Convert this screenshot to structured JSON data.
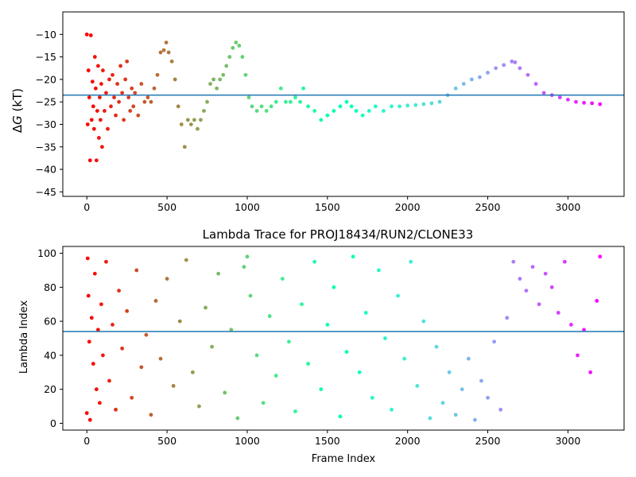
{
  "chart_data": [
    {
      "type": "scatter",
      "title": "",
      "xlabel": "",
      "ylabel_prefix": "Δ",
      "ylabel_italic": "G",
      "ylabel_suffix": " (kT)",
      "xlim": [
        -150,
        3350
      ],
      "ylim": [
        -46,
        -5
      ],
      "x_ticks": [
        0,
        500,
        1000,
        1500,
        2000,
        2500,
        3000
      ],
      "y_ticks": [
        -10,
        -15,
        -20,
        -25,
        -30,
        -35,
        -40,
        -45
      ],
      "hline": -23.5,
      "hline_color": "#1f77b4",
      "colormap": "rainbow",
      "grid": false,
      "description_of_series": "Free energy per frame, colored by frame index",
      "points": [
        {
          "x": 0,
          "y": -10
        },
        {
          "x": 5,
          "y": -30
        },
        {
          "x": 10,
          "y": -18
        },
        {
          "x": 15,
          "y": -24
        },
        {
          "x": 20,
          "y": -38
        },
        {
          "x": 25,
          "y": -10.2
        },
        {
          "x": 30,
          "y": -29
        },
        {
          "x": 35,
          "y": -20.5
        },
        {
          "x": 40,
          "y": -26
        },
        {
          "x": 45,
          "y": -31
        },
        {
          "x": 50,
          "y": -15
        },
        {
          "x": 55,
          "y": -22
        },
        {
          "x": 60,
          "y": -38
        },
        {
          "x": 65,
          "y": -27
        },
        {
          "x": 70,
          "y": -17
        },
        {
          "x": 75,
          "y": -33
        },
        {
          "x": 80,
          "y": -24
        },
        {
          "x": 85,
          "y": -29
        },
        {
          "x": 90,
          "y": -21
        },
        {
          "x": 95,
          "y": -35
        },
        {
          "x": 100,
          "y": -18
        },
        {
          "x": 110,
          "y": -27
        },
        {
          "x": 120,
          "y": -23
        },
        {
          "x": 130,
          "y": -31
        },
        {
          "x": 140,
          "y": -20
        },
        {
          "x": 150,
          "y": -26
        },
        {
          "x": 160,
          "y": -19
        },
        {
          "x": 170,
          "y": -24
        },
        {
          "x": 180,
          "y": -28
        },
        {
          "x": 190,
          "y": -21
        },
        {
          "x": 200,
          "y": -25
        },
        {
          "x": 210,
          "y": -17
        },
        {
          "x": 220,
          "y": -23
        },
        {
          "x": 230,
          "y": -29
        },
        {
          "x": 240,
          "y": -20
        },
        {
          "x": 250,
          "y": -16
        },
        {
          "x": 260,
          "y": -24
        },
        {
          "x": 270,
          "y": -27
        },
        {
          "x": 280,
          "y": -22
        },
        {
          "x": 290,
          "y": -26
        },
        {
          "x": 300,
          "y": -23
        },
        {
          "x": 320,
          "y": -28
        },
        {
          "x": 340,
          "y": -21
        },
        {
          "x": 360,
          "y": -25
        },
        {
          "x": 380,
          "y": -24
        },
        {
          "x": 400,
          "y": -25
        },
        {
          "x": 420,
          "y": -22
        },
        {
          "x": 440,
          "y": -19
        },
        {
          "x": 460,
          "y": -14
        },
        {
          "x": 480,
          "y": -13.5
        },
        {
          "x": 495,
          "y": -11.8
        },
        {
          "x": 510,
          "y": -14
        },
        {
          "x": 530,
          "y": -16
        },
        {
          "x": 550,
          "y": -20
        },
        {
          "x": 570,
          "y": -26
        },
        {
          "x": 590,
          "y": -30
        },
        {
          "x": 610,
          "y": -35
        },
        {
          "x": 630,
          "y": -29
        },
        {
          "x": 650,
          "y": -30
        },
        {
          "x": 670,
          "y": -29
        },
        {
          "x": 690,
          "y": -31
        },
        {
          "x": 710,
          "y": -29
        },
        {
          "x": 730,
          "y": -27
        },
        {
          "x": 750,
          "y": -25
        },
        {
          "x": 770,
          "y": -21
        },
        {
          "x": 790,
          "y": -20
        },
        {
          "x": 810,
          "y": -22
        },
        {
          "x": 830,
          "y": -20
        },
        {
          "x": 850,
          "y": -19
        },
        {
          "x": 870,
          "y": -17
        },
        {
          "x": 890,
          "y": -15
        },
        {
          "x": 910,
          "y": -13
        },
        {
          "x": 930,
          "y": -11.8
        },
        {
          "x": 950,
          "y": -12.5
        },
        {
          "x": 970,
          "y": -15
        },
        {
          "x": 990,
          "y": -19
        },
        {
          "x": 1010,
          "y": -24
        },
        {
          "x": 1030,
          "y": -26
        },
        {
          "x": 1060,
          "y": -27
        },
        {
          "x": 1090,
          "y": -26
        },
        {
          "x": 1120,
          "y": -27
        },
        {
          "x": 1150,
          "y": -26
        },
        {
          "x": 1180,
          "y": -25
        },
        {
          "x": 1210,
          "y": -22
        },
        {
          "x": 1240,
          "y": -25
        },
        {
          "x": 1270,
          "y": -25
        },
        {
          "x": 1300,
          "y": -24
        },
        {
          "x": 1330,
          "y": -25
        },
        {
          "x": 1350,
          "y": -22
        },
        {
          "x": 1380,
          "y": -26
        },
        {
          "x": 1420,
          "y": -27
        },
        {
          "x": 1460,
          "y": -29
        },
        {
          "x": 1500,
          "y": -28
        },
        {
          "x": 1540,
          "y": -27
        },
        {
          "x": 1580,
          "y": -26
        },
        {
          "x": 1620,
          "y": -25
        },
        {
          "x": 1650,
          "y": -26
        },
        {
          "x": 1680,
          "y": -27
        },
        {
          "x": 1720,
          "y": -28
        },
        {
          "x": 1760,
          "y": -27
        },
        {
          "x": 1800,
          "y": -26
        },
        {
          "x": 1850,
          "y": -27
        },
        {
          "x": 1900,
          "y": -26
        },
        {
          "x": 1950,
          "y": -26
        },
        {
          "x": 2000,
          "y": -25.8
        },
        {
          "x": 2050,
          "y": -25.7
        },
        {
          "x": 2100,
          "y": -25.5
        },
        {
          "x": 2150,
          "y": -25.3
        },
        {
          "x": 2200,
          "y": -25
        },
        {
          "x": 2250,
          "y": -23.5
        },
        {
          "x": 2300,
          "y": -22
        },
        {
          "x": 2350,
          "y": -21
        },
        {
          "x": 2400,
          "y": -20
        },
        {
          "x": 2450,
          "y": -19.5
        },
        {
          "x": 2500,
          "y": -18.5
        },
        {
          "x": 2550,
          "y": -17.5
        },
        {
          "x": 2600,
          "y": -16.8
        },
        {
          "x": 2650,
          "y": -16
        },
        {
          "x": 2670,
          "y": -16.2
        },
        {
          "x": 2700,
          "y": -17.5
        },
        {
          "x": 2750,
          "y": -19
        },
        {
          "x": 2800,
          "y": -21
        },
        {
          "x": 2850,
          "y": -23
        },
        {
          "x": 2900,
          "y": -23.5
        },
        {
          "x": 2950,
          "y": -24
        },
        {
          "x": 3000,
          "y": -24.5
        },
        {
          "x": 3050,
          "y": -25
        },
        {
          "x": 3100,
          "y": -25.2
        },
        {
          "x": 3150,
          "y": -25.3
        },
        {
          "x": 3200,
          "y": -25.5
        }
      ]
    },
    {
      "type": "scatter",
      "title": "Lambda Trace for PROJ18434/RUN2/CLONE33",
      "xlabel": "Frame Index",
      "ylabel": "Lambda Index",
      "xlim": [
        -150,
        3350
      ],
      "ylim": [
        -4,
        104
      ],
      "x_ticks": [
        0,
        500,
        1000,
        1500,
        2000,
        2500,
        3000
      ],
      "y_ticks": [
        0,
        20,
        40,
        60,
        80,
        100
      ],
      "hline": 54,
      "hline_color": "#1f77b4",
      "colormap": "rainbow",
      "grid": false,
      "points": [
        {
          "x": 0,
          "y": 6
        },
        {
          "x": 5,
          "y": 97
        },
        {
          "x": 10,
          "y": 75
        },
        {
          "x": 15,
          "y": 48
        },
        {
          "x": 20,
          "y": 2
        },
        {
          "x": 30,
          "y": 62
        },
        {
          "x": 40,
          "y": 35
        },
        {
          "x": 50,
          "y": 88
        },
        {
          "x": 60,
          "y": 20
        },
        {
          "x": 70,
          "y": 55
        },
        {
          "x": 80,
          "y": 12
        },
        {
          "x": 90,
          "y": 70
        },
        {
          "x": 100,
          "y": 40
        },
        {
          "x": 120,
          "y": 95
        },
        {
          "x": 140,
          "y": 25
        },
        {
          "x": 160,
          "y": 58
        },
        {
          "x": 180,
          "y": 8
        },
        {
          "x": 200,
          "y": 78
        },
        {
          "x": 220,
          "y": 44
        },
        {
          "x": 250,
          "y": 66
        },
        {
          "x": 280,
          "y": 15
        },
        {
          "x": 310,
          "y": 90
        },
        {
          "x": 340,
          "y": 33
        },
        {
          "x": 370,
          "y": 52
        },
        {
          "x": 400,
          "y": 5
        },
        {
          "x": 430,
          "y": 72
        },
        {
          "x": 460,
          "y": 38
        },
        {
          "x": 500,
          "y": 85
        },
        {
          "x": 540,
          "y": 22
        },
        {
          "x": 580,
          "y": 60
        },
        {
          "x": 620,
          "y": 96
        },
        {
          "x": 660,
          "y": 30
        },
        {
          "x": 700,
          "y": 10
        },
        {
          "x": 740,
          "y": 68
        },
        {
          "x": 780,
          "y": 45
        },
        {
          "x": 820,
          "y": 88
        },
        {
          "x": 860,
          "y": 18
        },
        {
          "x": 900,
          "y": 55
        },
        {
          "x": 940,
          "y": 3
        },
        {
          "x": 980,
          "y": 92
        },
        {
          "x": 1000,
          "y": 98
        },
        {
          "x": 1020,
          "y": 75
        },
        {
          "x": 1060,
          "y": 40
        },
        {
          "x": 1100,
          "y": 12
        },
        {
          "x": 1140,
          "y": 63
        },
        {
          "x": 1180,
          "y": 28
        },
        {
          "x": 1220,
          "y": 85
        },
        {
          "x": 1260,
          "y": 48
        },
        {
          "x": 1300,
          "y": 7
        },
        {
          "x": 1340,
          "y": 70
        },
        {
          "x": 1380,
          "y": 35
        },
        {
          "x": 1420,
          "y": 95
        },
        {
          "x": 1460,
          "y": 20
        },
        {
          "x": 1500,
          "y": 58
        },
        {
          "x": 1540,
          "y": 80
        },
        {
          "x": 1580,
          "y": 4
        },
        {
          "x": 1620,
          "y": 42
        },
        {
          "x": 1660,
          "y": 98
        },
        {
          "x": 1700,
          "y": 30
        },
        {
          "x": 1740,
          "y": 65
        },
        {
          "x": 1780,
          "y": 15
        },
        {
          "x": 1820,
          "y": 90
        },
        {
          "x": 1860,
          "y": 50
        },
        {
          "x": 1900,
          "y": 8
        },
        {
          "x": 1940,
          "y": 75
        },
        {
          "x": 1980,
          "y": 38
        },
        {
          "x": 2020,
          "y": 95
        },
        {
          "x": 2060,
          "y": 22
        },
        {
          "x": 2100,
          "y": 60
        },
        {
          "x": 2140,
          "y": 3
        },
        {
          "x": 2180,
          "y": 45
        },
        {
          "x": 2220,
          "y": 12
        },
        {
          "x": 2260,
          "y": 30
        },
        {
          "x": 2300,
          "y": 5
        },
        {
          "x": 2340,
          "y": 20
        },
        {
          "x": 2380,
          "y": 38
        },
        {
          "x": 2420,
          "y": 2
        },
        {
          "x": 2460,
          "y": 25
        },
        {
          "x": 2500,
          "y": 15
        },
        {
          "x": 2540,
          "y": 48
        },
        {
          "x": 2580,
          "y": 8
        },
        {
          "x": 2620,
          "y": 62
        },
        {
          "x": 2660,
          "y": 95
        },
        {
          "x": 2700,
          "y": 85
        },
        {
          "x": 2740,
          "y": 78
        },
        {
          "x": 2780,
          "y": 92
        },
        {
          "x": 2820,
          "y": 70
        },
        {
          "x": 2860,
          "y": 88
        },
        {
          "x": 2900,
          "y": 80
        },
        {
          "x": 2940,
          "y": 65
        },
        {
          "x": 2980,
          "y": 95
        },
        {
          "x": 3020,
          "y": 58
        },
        {
          "x": 3060,
          "y": 40
        },
        {
          "x": 3100,
          "y": 55
        },
        {
          "x": 3140,
          "y": 30
        },
        {
          "x": 3180,
          "y": 72
        },
        {
          "x": 3200,
          "y": 98
        }
      ]
    }
  ]
}
